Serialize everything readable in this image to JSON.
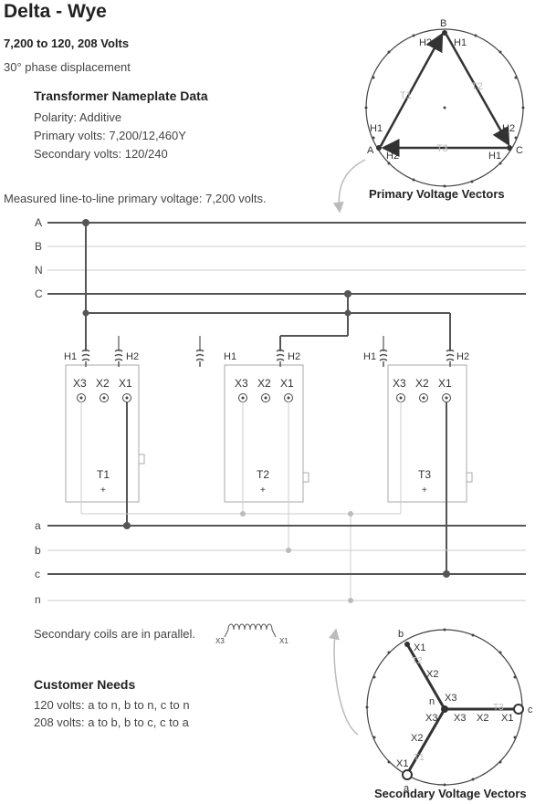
{
  "page": {
    "title": "Delta - Wye",
    "subtitle": "7,200 to 120, 208 Volts",
    "phase": "30° phase displacement"
  },
  "nameplate": {
    "heading": "Transformer Nameplate Data",
    "polarity": "Polarity: Additive",
    "primary": "Primary volts: 7,200/12,460Y",
    "secondary": "Secondary volts: 120/240"
  },
  "measured": "Measured line-to-line primary voltage: 7,200 volts.",
  "primary_vectors": {
    "caption": "Primary Voltage Vectors",
    "vertices": [
      "A",
      "B",
      "C"
    ],
    "sides": [
      "T1",
      "T2",
      "T3"
    ],
    "terminals": [
      "H1",
      "H2"
    ]
  },
  "primary_lines": [
    "A",
    "B",
    "N",
    "C"
  ],
  "secondary_lines": [
    "a",
    "b",
    "c",
    "n"
  ],
  "transformers": [
    {
      "name": "T1",
      "polarity": "+"
    },
    {
      "name": "T2",
      "polarity": "+"
    },
    {
      "name": "T3",
      "polarity": "+"
    }
  ],
  "terminals": {
    "h1": "H1",
    "h2": "H2",
    "x1": "X1",
    "x2": "X2",
    "x3": "X3"
  },
  "parallel_note": "Secondary coils are in parallel.",
  "coil_labels": [
    "X3",
    "X1"
  ],
  "customer": {
    "heading": "Customer Needs",
    "line1": "120 volts: a to n, b to n, c to n",
    "line2": "208 volts: a to b, b to c, c to a"
  },
  "secondary_vectors": {
    "caption": "Secondary Voltage Vectors",
    "phases": [
      "a",
      "b",
      "c",
      "n"
    ],
    "sides": [
      "T1",
      "T2",
      "T3"
    ],
    "terminals": [
      "X1",
      "X2",
      "X3"
    ]
  },
  "colors": {
    "wire_heavy": "#555555",
    "wire_light": "#bbbbbb",
    "label_gray": "#aaaaaa",
    "text": "#333333"
  }
}
